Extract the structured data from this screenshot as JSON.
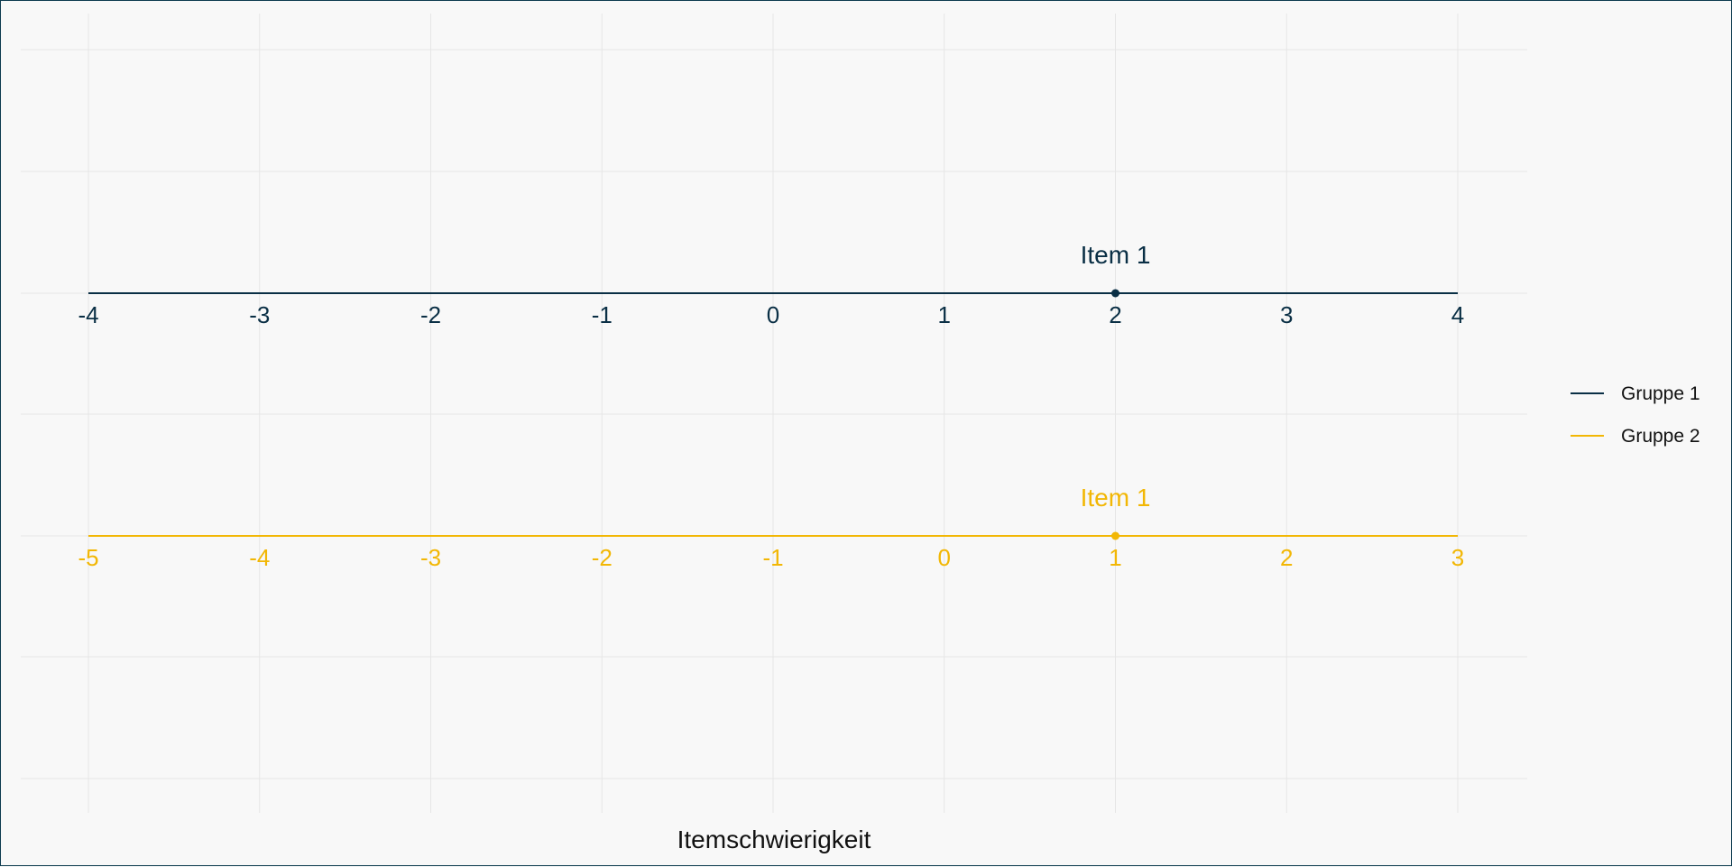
{
  "chart_data": {
    "type": "scatter",
    "title": "",
    "xlabel": "Itemschwierigkeit",
    "ylabel": "",
    "grid": true,
    "legend_position": "right",
    "colors": {
      "background": "#f8f8f8",
      "grid": "#e6e6e6",
      "border": "#0d3b4f",
      "Gruppe 1": "#0a2f45",
      "Gruppe 2": "#f2b705"
    },
    "series": [
      {
        "name": "Gruppe 1",
        "color": "#0a2f45",
        "ticks": [
          -4,
          -3,
          -2,
          -1,
          0,
          1,
          2,
          3,
          4
        ],
        "tick_labels": [
          "-4",
          "-3",
          "-2",
          "-1",
          "0",
          "1",
          "2",
          "3",
          "4"
        ],
        "points": [
          {
            "label": "Item 1",
            "x": 2
          }
        ]
      },
      {
        "name": "Gruppe 2",
        "color": "#f2b705",
        "ticks": [
          -5,
          -4,
          -3,
          -2,
          -1,
          0,
          1,
          2,
          3
        ],
        "tick_labels": [
          "-5",
          "-4",
          "-3",
          "-2",
          "-1",
          "0",
          "1",
          "2",
          "3"
        ],
        "points": [
          {
            "label": "Item 1",
            "x": 1
          }
        ]
      }
    ],
    "legend": [
      {
        "label": "Gruppe 1",
        "color": "#0a2f45"
      },
      {
        "label": "Gruppe 2",
        "color": "#f2b705"
      }
    ]
  }
}
